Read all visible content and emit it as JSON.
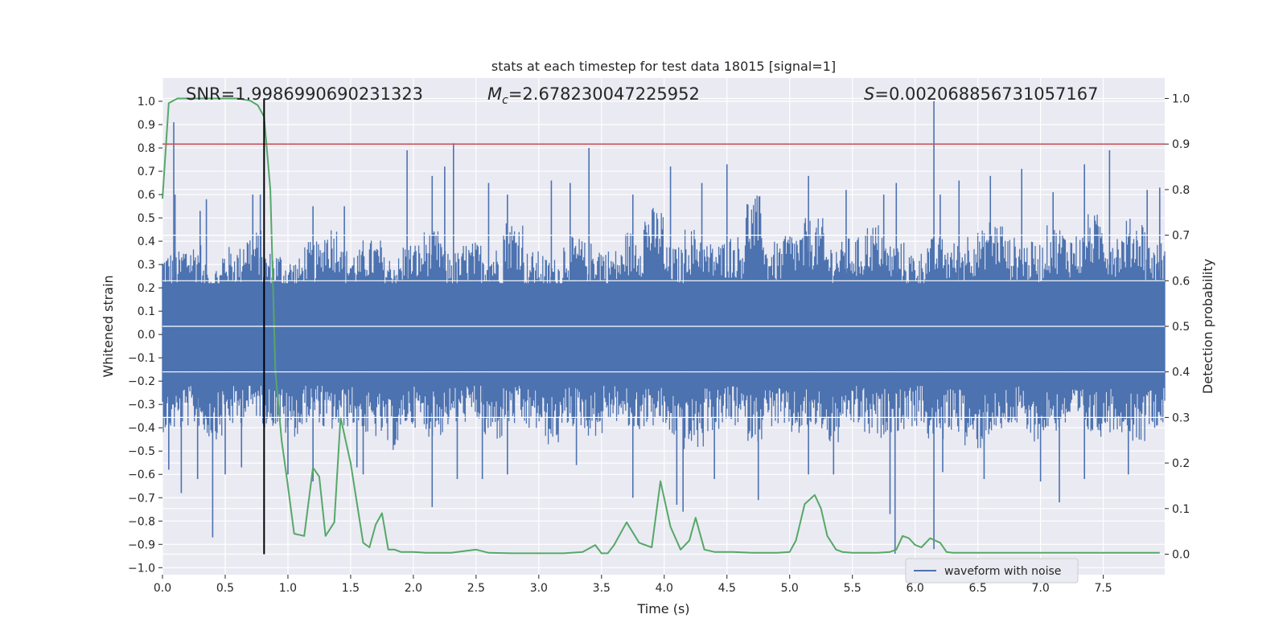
{
  "chart_data": {
    "type": "line",
    "title": "stats at each timestep for test data 18015 [signal=1]",
    "xlabel": "Time (s)",
    "ylabel_left": "Whitened strain",
    "ylabel_right": "Detection probability",
    "xlim": [
      0,
      7.99
    ],
    "ylim_left": [
      -1.03,
      1.1
    ],
    "ylim_right": [
      -0.045,
      1.045
    ],
    "x_ticks": [
      "0.0",
      "0.5",
      "1.0",
      "1.5",
      "2.0",
      "2.5",
      "3.0",
      "3.5",
      "4.0",
      "4.5",
      "5.0",
      "5.5",
      "6.0",
      "6.5",
      "7.0",
      "7.5"
    ],
    "y_ticks_left": [
      "1.0",
      "0.9",
      "0.8",
      "0.7",
      "0.6",
      "0.5",
      "0.4",
      "0.3",
      "0.2",
      "0.1",
      "0.0",
      "−0.1",
      "−0.2",
      "−0.3",
      "−0.4",
      "−0.5",
      "−0.6",
      "−0.7",
      "−0.8",
      "−0.9",
      "−1.0"
    ],
    "y_ticks_right": [
      "1.0",
      "0.9",
      "0.8",
      "0.7",
      "0.6",
      "0.5",
      "0.4",
      "0.3",
      "0.2",
      "0.1",
      "0.0"
    ],
    "grid": true,
    "background": "#eaeaf2",
    "annotations": {
      "snr": "SNR=1.9986990690231323",
      "mc_symbol": "M",
      "mc_subscript": "c",
      "mc_value": "=2.678230047225952",
      "s_symbol": "S",
      "s_value": "=0.002068856731057167"
    },
    "threshold": {
      "value": 0.9,
      "axis": "right",
      "color": "#c44e52"
    },
    "marker_time": 0.81,
    "waveform": {
      "name": "waveform with noise",
      "color": "#4c72b0",
      "envelope_top": [
        0.36,
        0.4,
        0.3,
        0.38,
        0.45,
        0.36,
        0.33,
        0.4,
        0.48,
        0.37,
        0.41,
        0.34,
        0.4,
        0.45,
        0.36,
        0.4,
        0.38,
        0.5,
        0.36,
        0.33,
        0.42,
        0.4,
        0.37,
        0.45,
        0.55,
        0.38,
        0.46,
        0.4,
        0.43,
        0.6,
        0.4,
        0.45,
        0.5,
        0.4,
        0.42,
        0.48,
        0.4,
        0.36,
        0.42,
        0.4,
        0.45,
        0.5,
        0.42,
        0.4,
        0.47,
        0.44,
        0.52,
        0.45,
        0.5,
        0.4
      ],
      "envelope_bottom": [
        -0.42,
        -0.4,
        -0.45,
        -0.4,
        -0.36,
        -0.4,
        -0.44,
        -0.38,
        -0.42,
        -0.4,
        -0.45,
        -0.5,
        -0.4,
        -0.44,
        -0.4,
        -0.38,
        -0.46,
        -0.4,
        -0.42,
        -0.48,
        -0.4,
        -0.44,
        -0.38,
        -0.42,
        -0.4,
        -0.45,
        -0.5,
        -0.42,
        -0.4,
        -0.46,
        -0.4,
        -0.44,
        -0.42,
        -0.48,
        -0.4,
        -0.45,
        -0.42,
        -0.4,
        -0.46,
        -0.42,
        -0.5,
        -0.44,
        -0.4,
        -0.46,
        -0.42,
        -0.4,
        -0.44,
        -0.42,
        -0.46,
        -0.4
      ],
      "spikes": [
        [
          0.09,
          0.91
        ],
        [
          0.1,
          0.6
        ],
        [
          0.3,
          0.53
        ],
        [
          0.35,
          0.58
        ],
        [
          0.72,
          0.6
        ],
        [
          0.78,
          0.6
        ],
        [
          1.2,
          0.55
        ],
        [
          1.45,
          0.55
        ],
        [
          1.95,
          0.79
        ],
        [
          2.15,
          0.68
        ],
        [
          2.25,
          0.72
        ],
        [
          2.32,
          0.82
        ],
        [
          2.6,
          0.65
        ],
        [
          2.75,
          0.6
        ],
        [
          3.1,
          0.66
        ],
        [
          3.25,
          0.65
        ],
        [
          3.4,
          0.8
        ],
        [
          3.75,
          0.6
        ],
        [
          4.05,
          0.72
        ],
        [
          4.3,
          0.65
        ],
        [
          4.5,
          0.73
        ],
        [
          5.15,
          0.68
        ],
        [
          5.45,
          0.62
        ],
        [
          5.75,
          0.6
        ],
        [
          5.85,
          0.65
        ],
        [
          6.15,
          1.0
        ],
        [
          6.2,
          0.6
        ],
        [
          6.35,
          0.66
        ],
        [
          6.6,
          0.68
        ],
        [
          6.85,
          0.71
        ],
        [
          7.1,
          0.61
        ],
        [
          7.35,
          0.73
        ],
        [
          7.55,
          0.79
        ],
        [
          7.85,
          0.62
        ],
        [
          7.95,
          0.63
        ],
        [
          0.05,
          -0.58
        ],
        [
          0.15,
          -0.68
        ],
        [
          0.28,
          -0.62
        ],
        [
          0.4,
          -0.87
        ],
        [
          0.5,
          -0.6
        ],
        [
          0.63,
          -0.57
        ],
        [
          1.0,
          -0.6
        ],
        [
          1.2,
          -0.63
        ],
        [
          1.55,
          -0.57
        ],
        [
          1.6,
          -0.6
        ],
        [
          2.15,
          -0.74
        ],
        [
          2.35,
          -0.62
        ],
        [
          2.55,
          -0.62
        ],
        [
          2.75,
          -0.6
        ],
        [
          3.3,
          -0.56
        ],
        [
          3.75,
          -0.7
        ],
        [
          4.1,
          -0.73
        ],
        [
          4.15,
          -0.76
        ],
        [
          4.4,
          -0.62
        ],
        [
          4.75,
          -0.71
        ],
        [
          5.15,
          -0.6
        ],
        [
          5.35,
          -0.6
        ],
        [
          5.8,
          -0.77
        ],
        [
          5.84,
          -0.94
        ],
        [
          6.15,
          -0.92
        ],
        [
          6.22,
          -0.59
        ],
        [
          6.55,
          -0.62
        ],
        [
          7.0,
          -0.63
        ],
        [
          7.15,
          -0.72
        ],
        [
          7.35,
          -0.62
        ],
        [
          7.7,
          -0.6
        ]
      ]
    },
    "probability": {
      "color": "#55a868",
      "x": [
        0.0,
        0.05,
        0.12,
        0.2,
        0.3,
        0.45,
        0.6,
        0.7,
        0.76,
        0.81,
        0.86,
        0.9,
        0.95,
        1.0,
        1.05,
        1.13,
        1.2,
        1.25,
        1.3,
        1.37,
        1.42,
        1.5,
        1.6,
        1.65,
        1.7,
        1.75,
        1.8,
        1.85,
        1.9,
        2.0,
        2.1,
        2.3,
        2.5,
        2.6,
        2.8,
        3.0,
        3.2,
        3.35,
        3.45,
        3.5,
        3.55,
        3.6,
        3.7,
        3.8,
        3.9,
        3.97,
        4.05,
        4.13,
        4.2,
        4.25,
        4.32,
        4.4,
        4.55,
        4.7,
        4.9,
        5.0,
        5.05,
        5.12,
        5.2,
        5.25,
        5.3,
        5.37,
        5.42,
        5.5,
        5.7,
        5.8,
        5.85,
        5.9,
        5.95,
        6.0,
        6.05,
        6.12,
        6.2,
        6.25,
        6.3,
        6.35,
        6.5,
        6.7,
        7.0,
        7.3,
        7.6,
        7.95
      ],
      "y": [
        0.78,
        0.99,
        1.0,
        1.0,
        1.0,
        1.0,
        1.0,
        0.995,
        0.985,
        0.96,
        0.8,
        0.4,
        0.25,
        0.15,
        0.045,
        0.04,
        0.19,
        0.17,
        0.04,
        0.07,
        0.3,
        0.2,
        0.025,
        0.015,
        0.065,
        0.09,
        0.01,
        0.01,
        0.005,
        0.005,
        0.003,
        0.003,
        0.01,
        0.003,
        0.002,
        0.002,
        0.002,
        0.005,
        0.02,
        0.002,
        0.002,
        0.02,
        0.07,
        0.025,
        0.015,
        0.16,
        0.06,
        0.01,
        0.03,
        0.08,
        0.01,
        0.005,
        0.005,
        0.003,
        0.003,
        0.005,
        0.03,
        0.11,
        0.13,
        0.1,
        0.04,
        0.01,
        0.005,
        0.003,
        0.003,
        0.005,
        0.01,
        0.04,
        0.035,
        0.02,
        0.015,
        0.035,
        0.025,
        0.005,
        0.003,
        0.003,
        0.003,
        0.003,
        0.003,
        0.003,
        0.003,
        0.003
      ]
    }
  }
}
